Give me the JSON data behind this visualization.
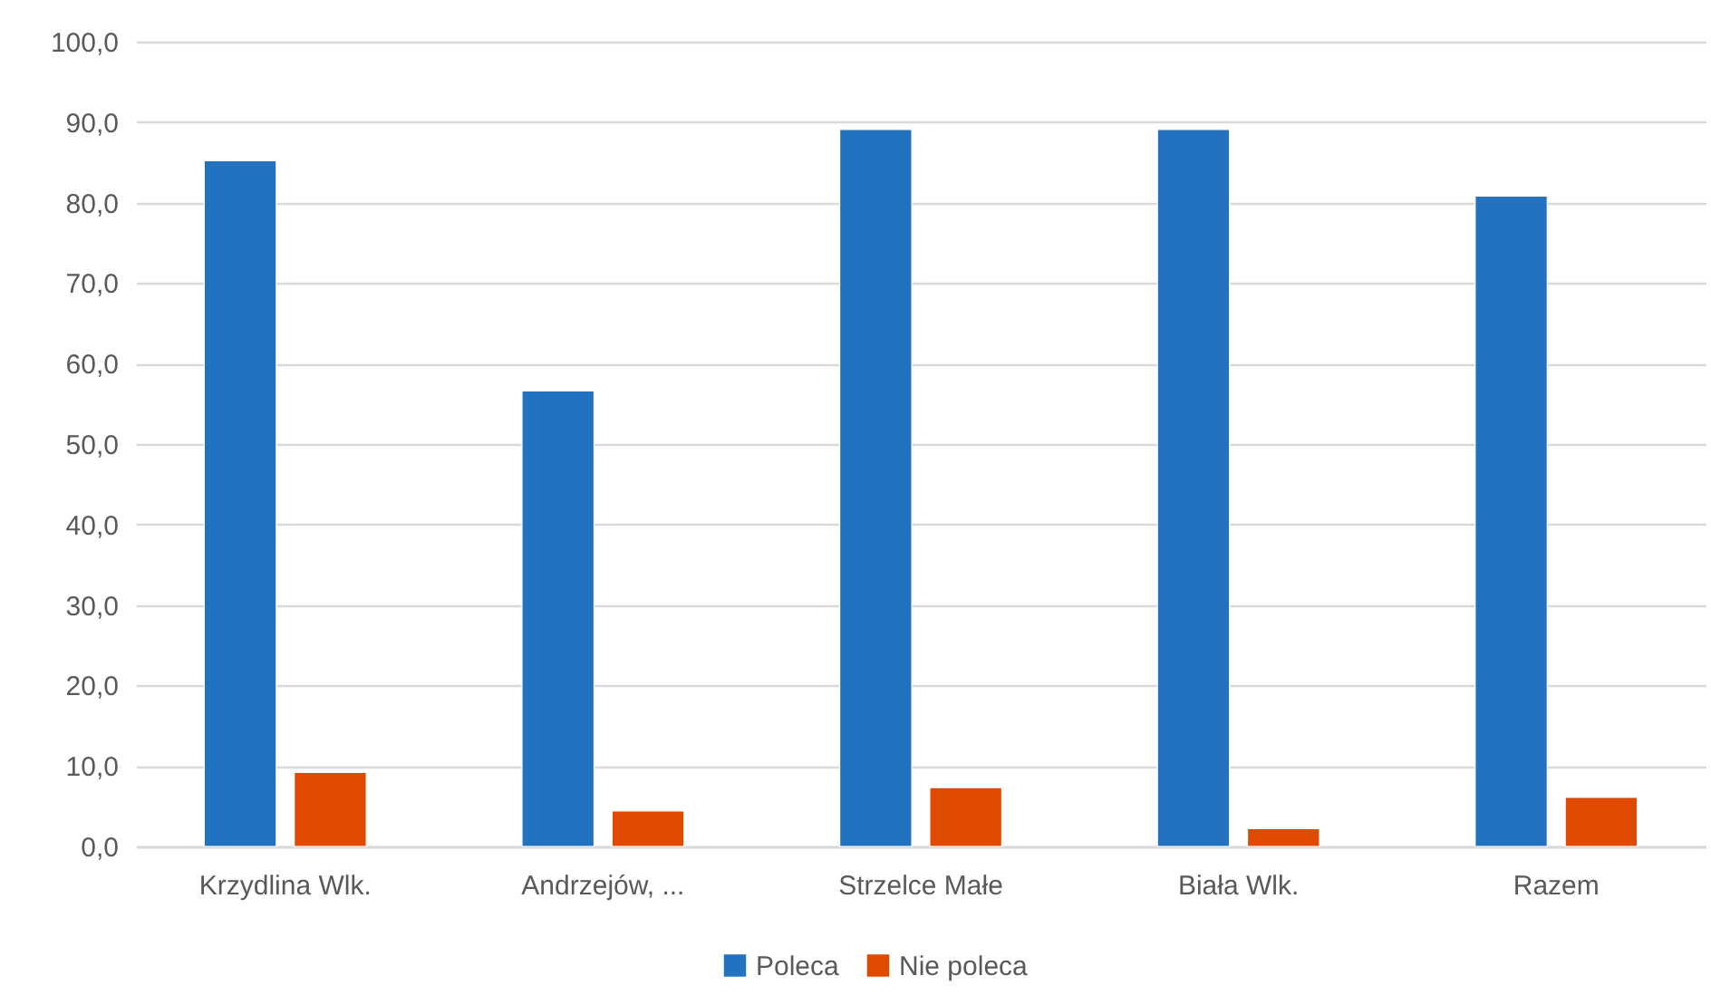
{
  "chart_data": {
    "type": "bar",
    "categories": [
      "Krzydlina Wlk.",
      "Andrzejów, ...",
      "Strzelce Małe",
      "Biała Wlk.",
      "Razem"
    ],
    "series": [
      {
        "name": "Poleca",
        "color": "#2372c0",
        "values": [
          85.2,
          56.6,
          89.1,
          89.1,
          80.8
        ]
      },
      {
        "name": "Nie poleca",
        "color": "#e04a00",
        "values": [
          9.2,
          4.4,
          7.3,
          2.2,
          6.1
        ]
      }
    ],
    "ylim": [
      0,
      100
    ],
    "yticks": [
      {
        "value": 0,
        "label": "0,0"
      },
      {
        "value": 10,
        "label": "10,0"
      },
      {
        "value": 20,
        "label": "20,0"
      },
      {
        "value": 30,
        "label": "30,0"
      },
      {
        "value": 40,
        "label": "40,0"
      },
      {
        "value": 50,
        "label": "50,0"
      },
      {
        "value": 60,
        "label": "60,0"
      },
      {
        "value": 70,
        "label": "70,0"
      },
      {
        "value": 80,
        "label": "80,0"
      },
      {
        "value": 90,
        "label": "90,0"
      },
      {
        "value": 100,
        "label": "100,0"
      }
    ],
    "grid": "y",
    "legend": "bottom"
  }
}
